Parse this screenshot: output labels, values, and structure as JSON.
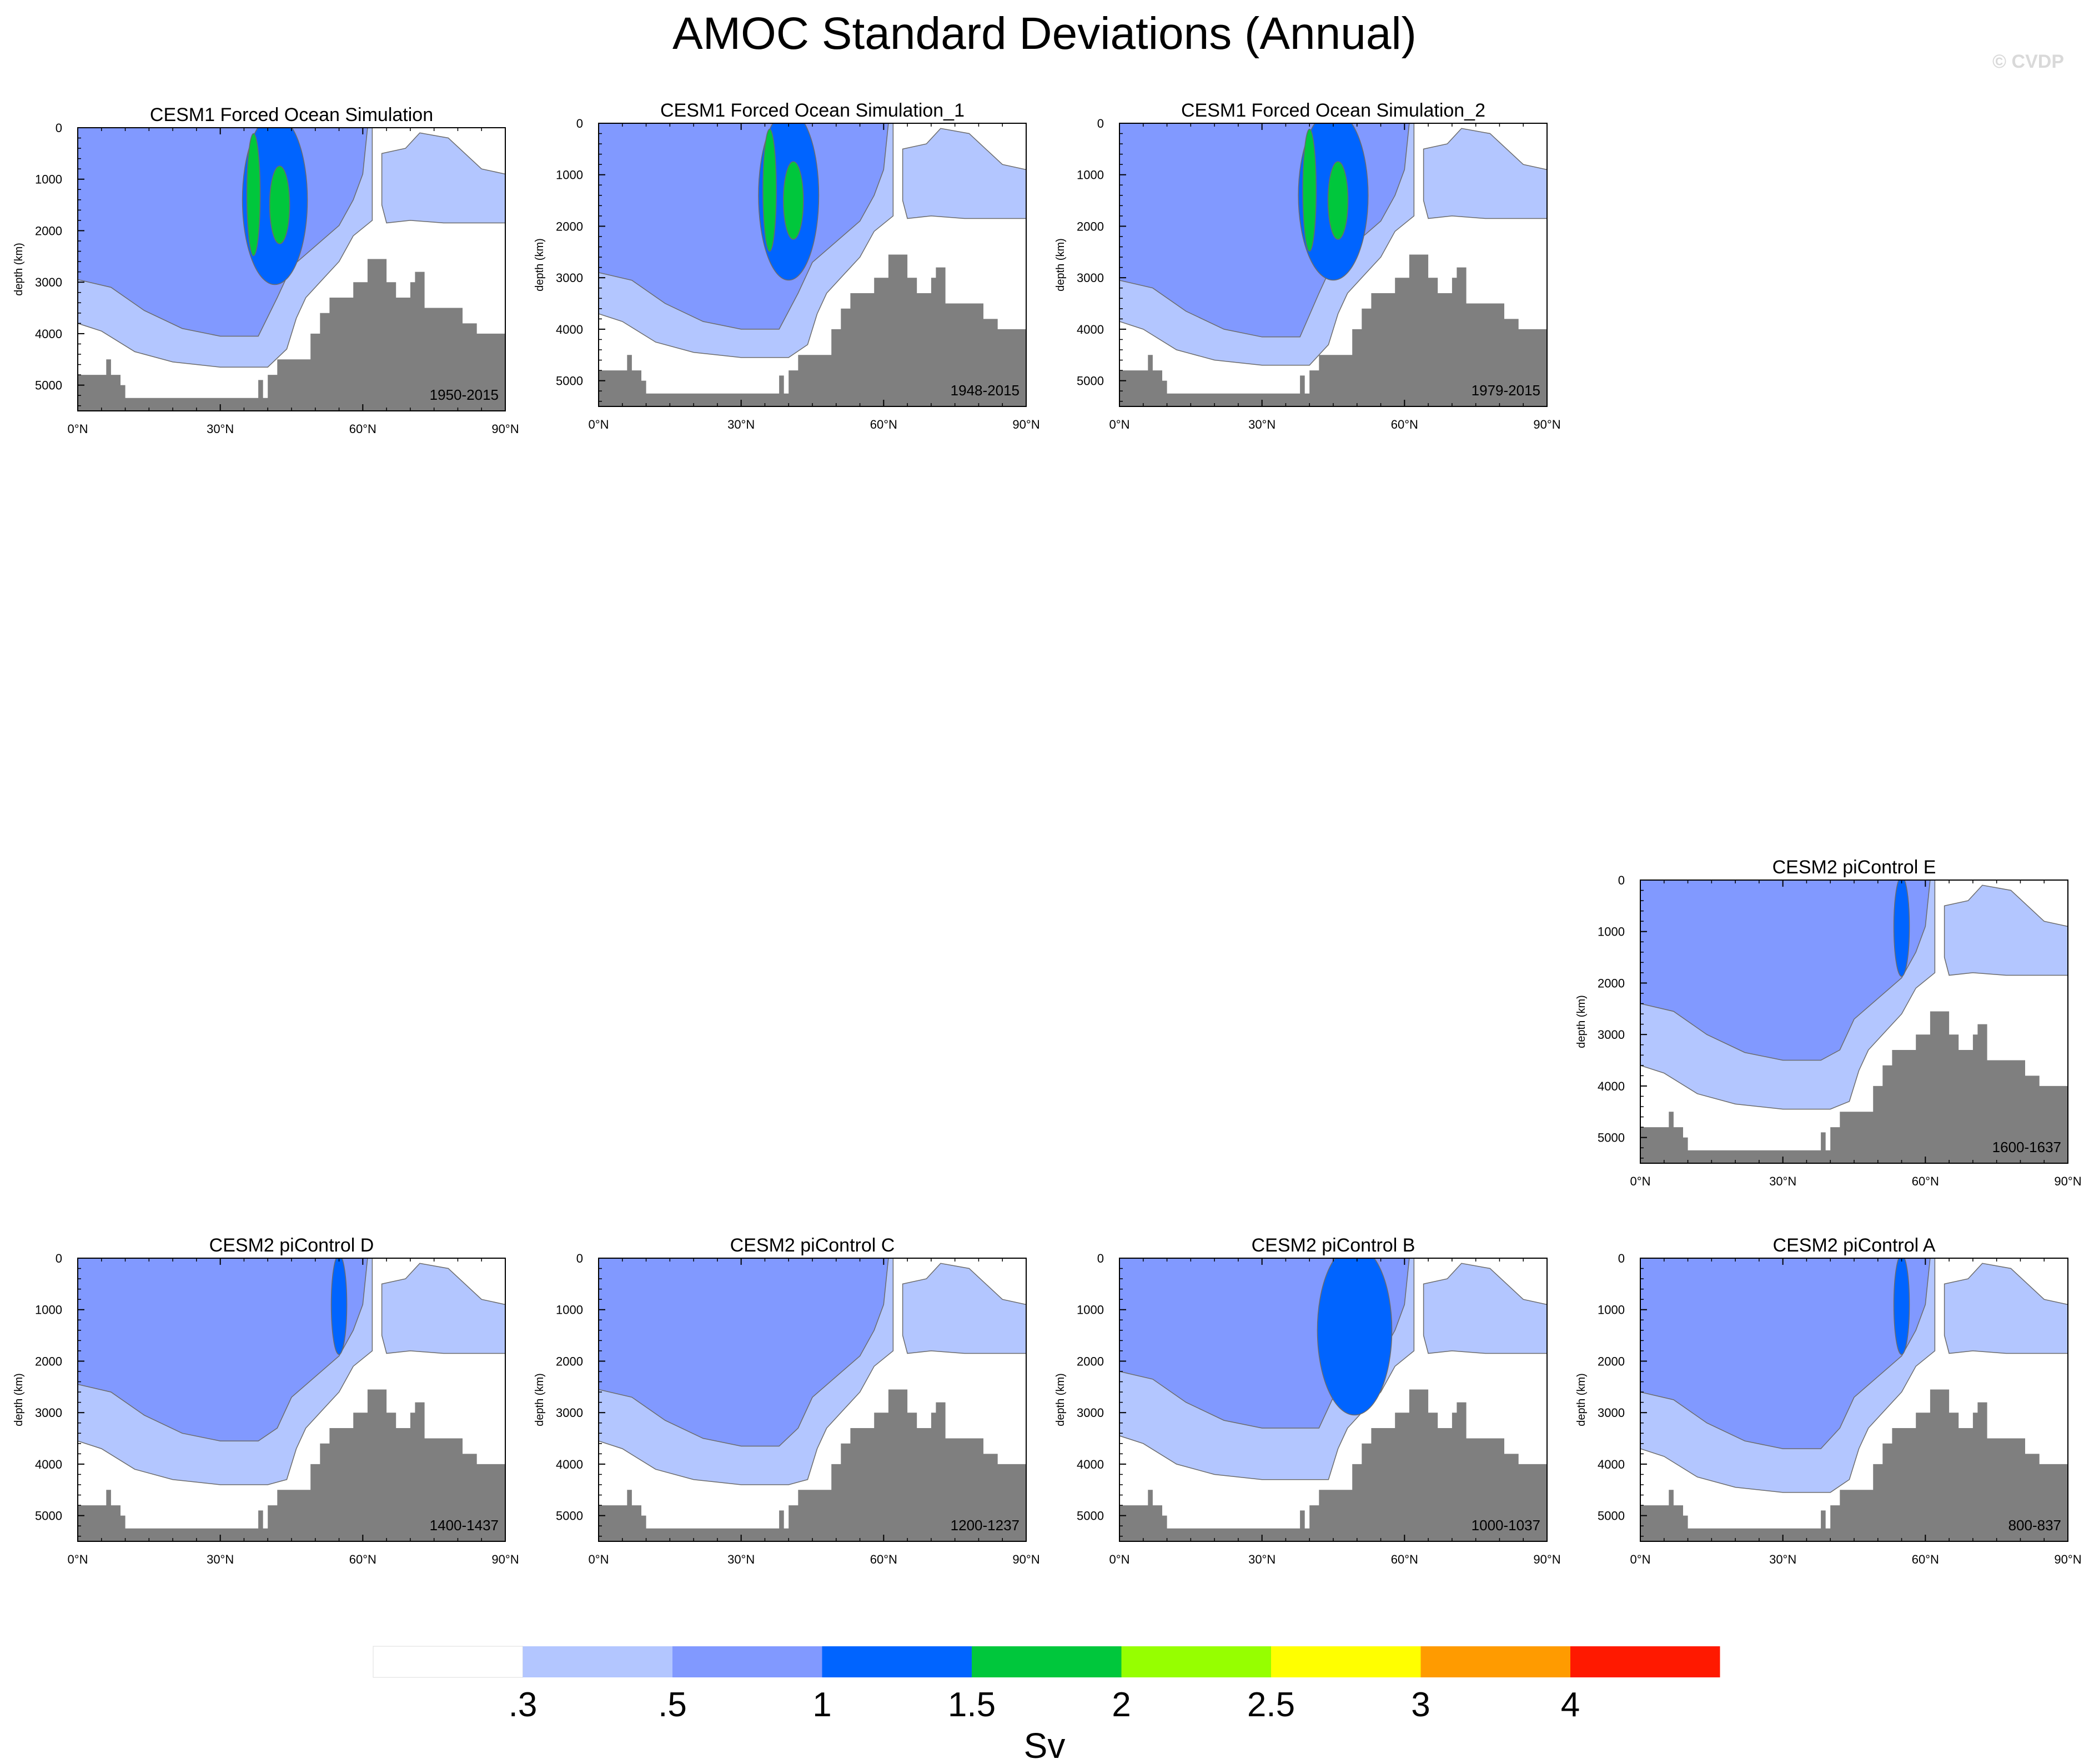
{
  "title": "AMOC Standard Deviations (Annual)",
  "watermark": "© CVDP",
  "colors": {
    "levels": [
      "#ffffff",
      "#b3c6ff",
      "#8199ff",
      "#0064ff",
      "#00c73c",
      "#96ff00",
      "#ffff00",
      "#ff9b00",
      "#ff1900"
    ],
    "land": "#7f7f7f",
    "contour_line": "#6b6b6b"
  },
  "chart_data": {
    "type": "contour",
    "common": {
      "ylabel": "depth (km)",
      "xticks": [
        "0°N",
        "30°N",
        "60°N",
        "90°N"
      ],
      "xlim": [
        0,
        90
      ],
      "yticks": [
        "0",
        "1000",
        "2000",
        "3000",
        "4000",
        "5000"
      ],
      "ylim": [
        0,
        5500
      ]
    },
    "panels": [
      {
        "id": "cesm1-forced",
        "title": "CESM1 Forced Ocean Simulation",
        "period": "1950-2015",
        "max_band": 4,
        "core": [
          37,
          46
        ],
        "bottom": 4650,
        "mid_depth": 4050
      },
      {
        "id": "cesm1-forced-1",
        "title": "CESM1 Forced Ocean Simulation_1",
        "period": "1948-2015",
        "max_band": 4,
        "core": [
          36,
          44
        ],
        "bottom": 4550,
        "mid_depth": 4000
      },
      {
        "id": "cesm1-forced-2",
        "title": "CESM1 Forced Ocean Simulation_2",
        "period": "1979-2015",
        "max_band": 4,
        "core": [
          40,
          50
        ],
        "bottom": 4700,
        "mid_depth": 4150
      },
      {
        "id": "cesm2-picontrol-e",
        "title": "CESM2 piControl E",
        "period": "1600-1637",
        "max_band": 3,
        "core": [
          54,
          56
        ],
        "bottom": 4450,
        "mid_depth": 3500
      },
      {
        "id": "cesm2-picontrol-d",
        "title": "CESM2 piControl D",
        "period": "1400-1437",
        "max_band": 3,
        "core": [
          54,
          56
        ],
        "bottom": 4400,
        "mid_depth": 3550
      },
      {
        "id": "cesm2-picontrol-c",
        "title": "CESM2 piControl C",
        "period": "1200-1237",
        "max_band": 2,
        "core": [],
        "bottom": 4400,
        "mid_depth": 3650
      },
      {
        "id": "cesm2-picontrol-b",
        "title": "CESM2 piControl B",
        "period": "1000-1037",
        "max_band": 3,
        "core": [
          44,
          55
        ],
        "bottom": 4300,
        "mid_depth": 3300
      },
      {
        "id": "cesm2-picontrol-a",
        "title": "CESM2 piControl A",
        "period": "800-837",
        "max_band": 3,
        "core": [
          54,
          56
        ],
        "bottom": 4550,
        "mid_depth": 3700
      }
    ],
    "colorbar": {
      "label": "Sv",
      "tick_labels": [
        ".3",
        ".5",
        "1",
        "1.5",
        "2",
        "2.5",
        "3",
        "4"
      ]
    }
  }
}
